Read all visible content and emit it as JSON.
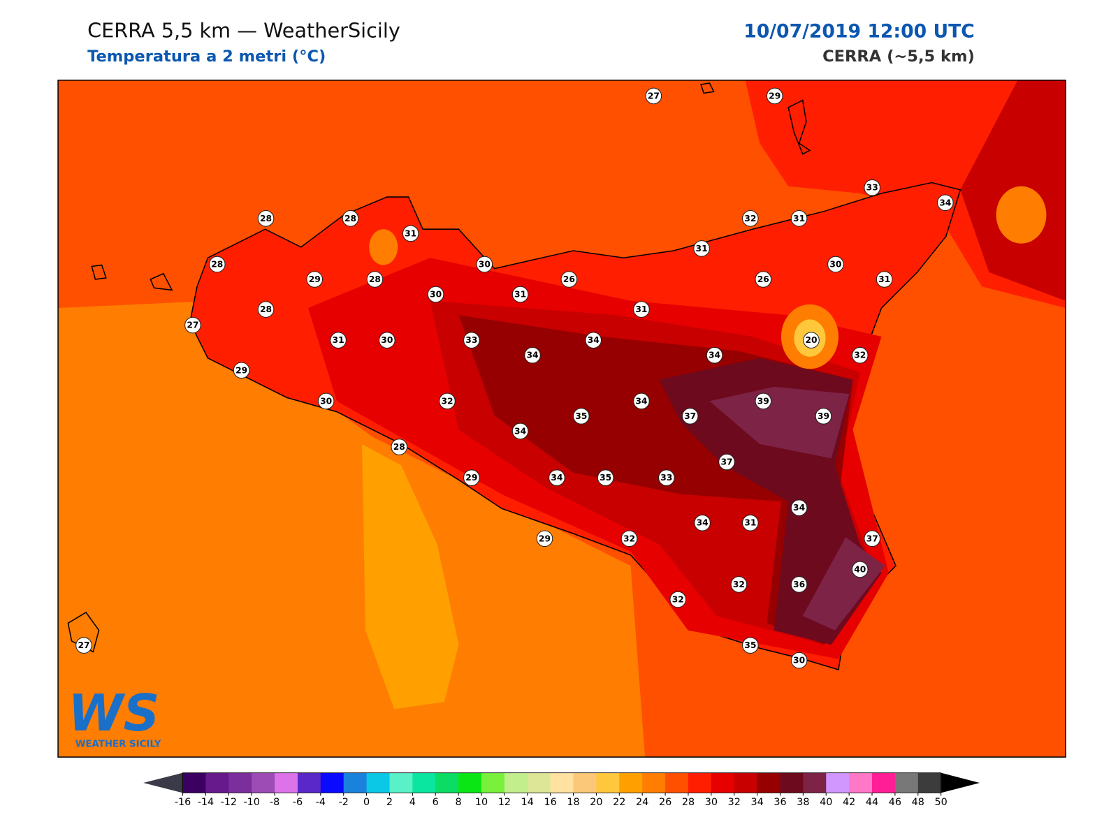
{
  "header": {
    "title": "CERRA 5,5 km — WeatherSicily",
    "subtitle": "Temperatura a 2 metri (°C)",
    "datetime": "10/07/2019 12:00 UTC",
    "model": "CERRA (~5,5 km)"
  },
  "stations": [
    27,
    29,
    33,
    34,
    28,
    28,
    31,
    32,
    31,
    28,
    30,
    31,
    30,
    29,
    28,
    26,
    26,
    31,
    30,
    31,
    28,
    31,
    27,
    31,
    30,
    33,
    34,
    20,
    34,
    34,
    32,
    29,
    30,
    32,
    34,
    39,
    35,
    37,
    39,
    34,
    28,
    37,
    29,
    34,
    35,
    33,
    34,
    34,
    31,
    29,
    32,
    37,
    40,
    32,
    36,
    32,
    27,
    35,
    30
  ],
  "colorbar": {
    "ticks": [
      -16,
      -14,
      -12,
      -10,
      -8,
      -6,
      -4,
      -2,
      0,
      2,
      4,
      6,
      8,
      10,
      12,
      14,
      16,
      18,
      20,
      22,
      24,
      26,
      28,
      30,
      32,
      34,
      36,
      38,
      40,
      42,
      44,
      46,
      48,
      50
    ],
    "colors": [
      "#3c0060",
      "#661a8c",
      "#7b2f9c",
      "#9c4cb4",
      "#dd73e8",
      "#5a28c8",
      "#0a0aff",
      "#1a82dc",
      "#0ac8e6",
      "#5af0c8",
      "#0ae6a0",
      "#0adc64",
      "#0ae614",
      "#78f03c",
      "#c3ee8c",
      "#dce696",
      "#ffe1a0",
      "#fac878",
      "#ffc83c",
      "#ffa000",
      "#ff7d00",
      "#ff5000",
      "#ff1e00",
      "#e60000",
      "#c80000",
      "#960000",
      "#6e0a1e",
      "#7d2346",
      "#d296ff",
      "#ff78c8",
      "#ff1e96",
      "#787878",
      "#3c3c3c"
    ],
    "under": "#3a3a48",
    "over": "#000000"
  },
  "logo": {
    "mark": "WS",
    "text": "WEATHER SICILY"
  }
}
